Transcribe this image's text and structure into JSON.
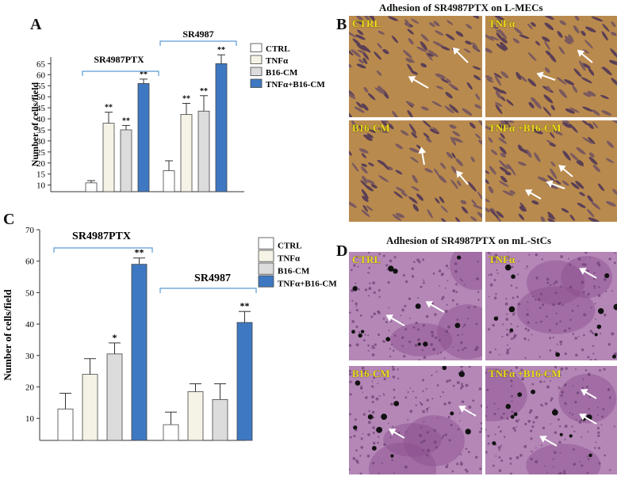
{
  "panels": {
    "A": {
      "letter": "A"
    },
    "B": {
      "letter": "B",
      "title": "Adhesion of SR4987PTX on L-MECs",
      "images": [
        {
          "label": "CTRL"
        },
        {
          "label": "TNFα"
        },
        {
          "label": "B16-CM"
        },
        {
          "label": "TNFα +B16-CM"
        }
      ]
    },
    "C": {
      "letter": "C"
    },
    "D": {
      "letter": "D",
      "title": "Adhesion of SR4987PTX on mL-StCs",
      "images": [
        {
          "label": "CTRL"
        },
        {
          "label": "TNFα"
        },
        {
          "label": "B16-CM"
        },
        {
          "label": "TNFα +B16-CM"
        }
      ]
    }
  },
  "colors": {
    "ctrl": "#ffffff",
    "tnf": "#f5f2e6",
    "b16": "#dcdcdc",
    "combo": "#3f78c2",
    "bracket": "#5b9bd5",
    "lmec_bg": "#b98a4e",
    "stc_bg": "#b487b7"
  },
  "chart_data": [
    {
      "type": "bar",
      "panel": "A",
      "ylabel": "Number of cells/field",
      "ylim": [
        7,
        68
      ],
      "yticks": [
        10,
        15,
        20,
        25,
        30,
        35,
        40,
        45,
        50,
        55,
        60,
        65
      ],
      "groups": [
        "SR4987PTX",
        "SR4987"
      ],
      "legend": [
        "CTRL",
        "TNFα",
        "B16-CM",
        "TNFα+B16-CM"
      ],
      "series": [
        {
          "name": "CTRL",
          "values": [
            11,
            16.5
          ],
          "errors": [
            1,
            4.5
          ],
          "sig": [
            "",
            ""
          ]
        },
        {
          "name": "TNFα",
          "values": [
            38,
            42
          ],
          "errors": [
            5,
            5
          ],
          "sig": [
            "**",
            "**"
          ]
        },
        {
          "name": "B16-CM",
          "values": [
            35,
            43.5
          ],
          "errors": [
            2,
            7
          ],
          "sig": [
            "**",
            "**"
          ]
        },
        {
          "name": "TNFα+B16-CM",
          "values": [
            56,
            65
          ],
          "errors": [
            2,
            4
          ],
          "sig": [
            "**",
            "**"
          ]
        }
      ]
    },
    {
      "type": "bar",
      "panel": "C",
      "ylabel": "Number of cells/field",
      "ylim": [
        3,
        70
      ],
      "yticks": [
        10,
        20,
        30,
        40,
        50,
        60,
        70
      ],
      "groups": [
        "SR4987PTX",
        "SR4987"
      ],
      "legend": [
        "CTRL",
        "TNFα",
        "B16-CM",
        "TNFα+B16-CM"
      ],
      "series": [
        {
          "name": "CTRL",
          "values": [
            13,
            8
          ],
          "errors": [
            5,
            4
          ],
          "sig": [
            "",
            ""
          ]
        },
        {
          "name": "TNFα",
          "values": [
            24,
            18.5
          ],
          "errors": [
            5,
            2.5
          ],
          "sig": [
            "",
            ""
          ]
        },
        {
          "name": "B16-CM",
          "values": [
            30.5,
            16
          ],
          "errors": [
            3.5,
            5
          ],
          "sig": [
            "*",
            ""
          ]
        },
        {
          "name": "TNFα+B16-CM",
          "values": [
            59,
            40.5
          ],
          "errors": [
            2,
            3.5
          ],
          "sig": [
            "**",
            "**"
          ]
        }
      ]
    }
  ]
}
